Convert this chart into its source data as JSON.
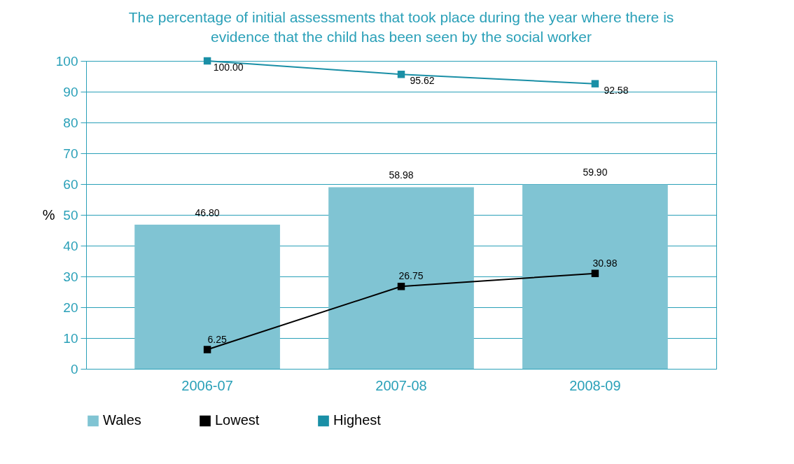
{
  "chart_data": {
    "type": "bar",
    "title": "The percentage of initial assessments that took place during the year where there is evidence that the child has been seen by the social worker",
    "ylabel": "%",
    "categories": [
      "2006-07",
      "2007-08",
      "2008-09"
    ],
    "series": [
      {
        "name": "Wales",
        "color": "#80c4d3",
        "values": [
          46.8,
          58.98,
          59.9
        ],
        "value_labels": [
          "46.80",
          "58.98",
          "59.90"
        ]
      },
      {
        "name": "Lowest",
        "type": "line",
        "color": "#000000",
        "values": [
          6.25,
          26.75,
          30.98
        ],
        "value_labels": [
          "6.25",
          "26.75",
          "30.98"
        ]
      },
      {
        "name": "Highest",
        "type": "line",
        "color": "#1a8fa6",
        "values": [
          100,
          95.62,
          92.58
        ],
        "value_labels": [
          "100.00",
          "95.62",
          "92.58"
        ]
      }
    ],
    "ylim": [
      0,
      100
    ],
    "yticks": [
      0,
      10,
      20,
      30,
      40,
      50,
      60,
      70,
      80,
      90,
      100
    ],
    "grid": "y",
    "legend": "bottom",
    "marker": "square"
  }
}
